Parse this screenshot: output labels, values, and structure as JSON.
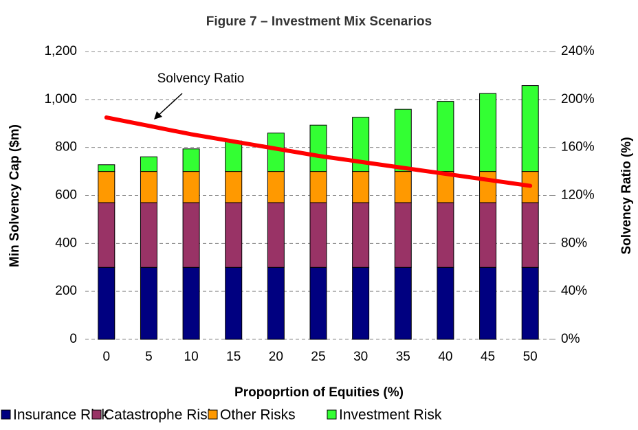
{
  "chart_data": {
    "type": "stacked_bar_line",
    "title": "Figure 7 – Investment Mix Scenarios",
    "x_label": "Propoprtion of Equities (%)",
    "y_label": "Min Solvency Cap ($m)",
    "y2_label": "Solvency Ratio (%)",
    "categories": [
      "0",
      "5",
      "10",
      "15",
      "20",
      "25",
      "30",
      "35",
      "40",
      "45",
      "50"
    ],
    "series": [
      {
        "name": "Insurance Risk",
        "color": "#000080",
        "values": [
          300,
          300,
          300,
          300,
          300,
          300,
          300,
          300,
          300,
          300,
          300
        ]
      },
      {
        "name": "Catastrophe Risk",
        "color": "#993366",
        "values": [
          270,
          270,
          270,
          270,
          270,
          270,
          270,
          270,
          270,
          270,
          270
        ]
      },
      {
        "name": "Other Risks",
        "color": "#ff9900",
        "values": [
          130,
          130,
          130,
          130,
          130,
          130,
          130,
          130,
          130,
          130,
          130
        ]
      },
      {
        "name": "Investment Risk",
        "color": "#33ff33",
        "values": [
          28,
          61,
          94,
          127,
          160,
          193,
          226,
          259,
          292,
          325,
          358
        ]
      },
      {
        "name": "Solvency Ratio",
        "color": "#ff0000",
        "axis": "y2",
        "type": "line",
        "values": [
          185,
          178,
          171,
          165,
          159,
          153,
          148,
          143,
          138,
          133,
          128
        ]
      }
    ],
    "annotations": [
      {
        "text": "Solvency Ratio"
      }
    ],
    "ylim": [
      0,
      1200
    ],
    "yticks": [
      0,
      200,
      400,
      600,
      800,
      {
        "value": 1000,
        "label": "1,000"
      },
      {
        "value": 1200,
        "label": "1,200"
      }
    ],
    "y2lim": [
      0,
      240
    ],
    "y2ticks": [
      {
        "value": 0,
        "label": "0%"
      },
      {
        "value": 40,
        "label": "40%"
      },
      {
        "value": 80,
        "label": "80%"
      },
      {
        "value": 120,
        "label": "120%"
      },
      {
        "value": 160,
        "label": "160%"
      },
      {
        "value": 200,
        "label": "200%"
      },
      {
        "value": 240,
        "label": "240%"
      }
    ],
    "grid": true,
    "legend": "bottom"
  }
}
